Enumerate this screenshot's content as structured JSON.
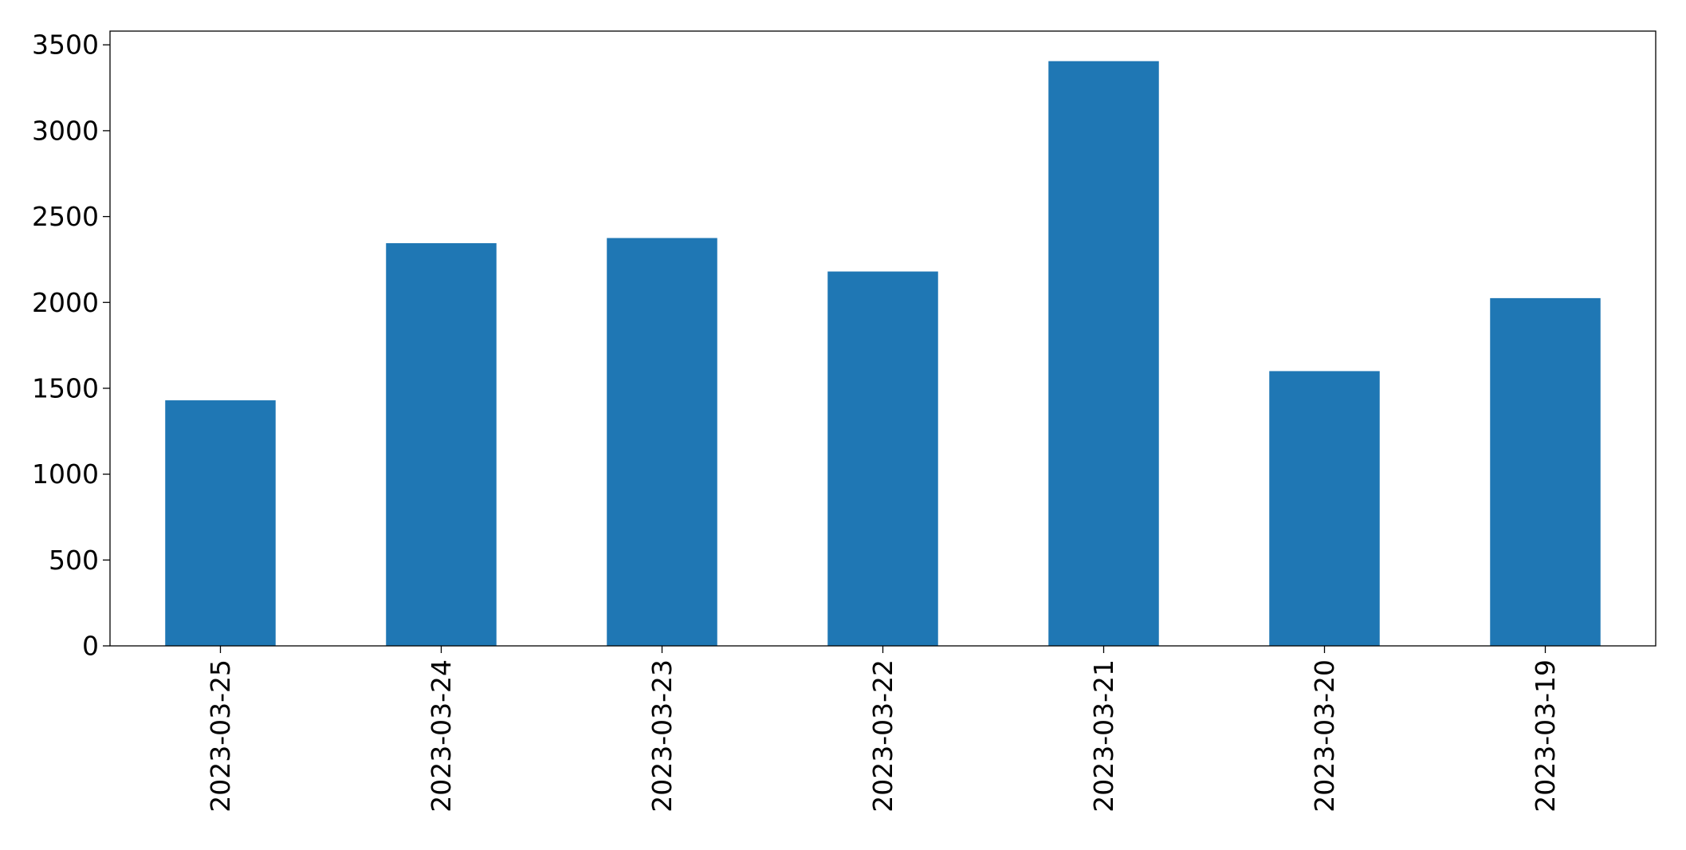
{
  "chart_data": {
    "type": "bar",
    "categories": [
      "2023-03-25",
      "2023-03-24",
      "2023-03-23",
      "2023-03-22",
      "2023-03-21",
      "2023-03-20",
      "2023-03-19"
    ],
    "values": [
      1430,
      2345,
      2375,
      2180,
      3405,
      1600,
      2025
    ],
    "ylim": [
      0,
      3580
    ],
    "yticks": [
      0,
      500,
      1000,
      1500,
      2000,
      2500,
      3000,
      3500
    ],
    "bar_color": "#1f77b4",
    "grid": false,
    "legend": "none"
  }
}
